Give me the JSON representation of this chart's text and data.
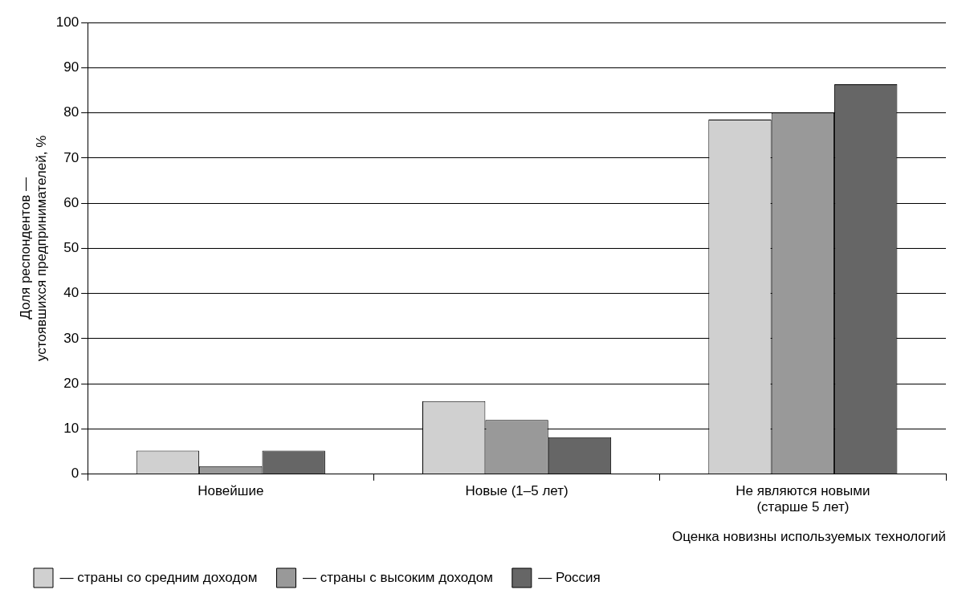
{
  "chart_data": {
    "type": "bar",
    "xlabel": "Оценка новизны используемых технологий",
    "ylabel": "Доля респондентов — устоявшихся предпринимателей, %",
    "categories": [
      "Новейшие",
      "Новые (1–5 лет)",
      "Не являются новыми (старше 5 лет)"
    ],
    "series": [
      {
        "name": "— страны со средним доходом",
        "color": "#d0d0d0",
        "values": [
          5.2,
          16.2,
          78.5
        ]
      },
      {
        "name": "— страны с высоким доходом",
        "color": "#999999",
        "values": [
          1.8,
          12,
          80
        ]
      },
      {
        "name": "— Россия",
        "color": "#666666",
        "values": [
          5.2,
          8.2,
          86.3
        ]
      }
    ],
    "ylim": [
      0,
      100
    ],
    "yticks": [
      0,
      10,
      20,
      30,
      40,
      50,
      60,
      70,
      80,
      90,
      100
    ],
    "grid": "y",
    "legend": "bottom"
  }
}
